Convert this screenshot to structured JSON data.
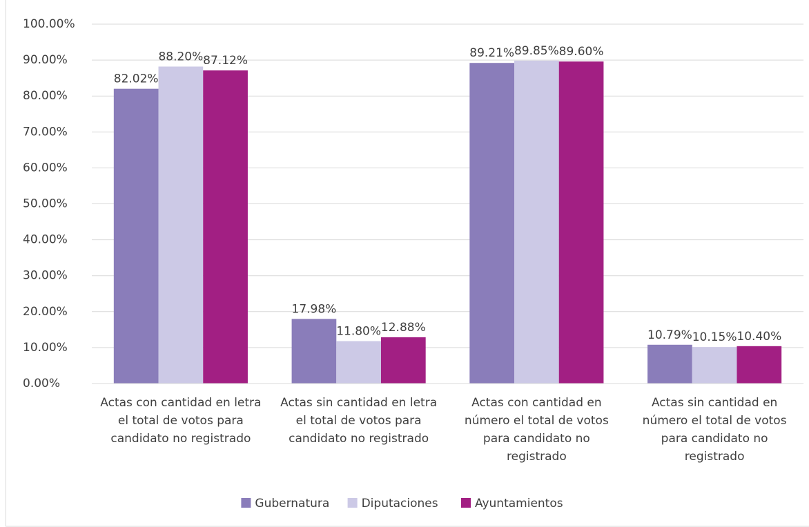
{
  "chart_data": {
    "type": "bar",
    "categories": [
      "Actas con cantidad en letra el total de votos para candidato no registrado",
      "Actas sin cantidad en letra el total de votos para candidato no registrado",
      "Actas con cantidad en número el total de votos para candidato no registrado",
      "Actas sin cantidad en número el total de votos para candidato no registrado"
    ],
    "series": [
      {
        "name": "Gubernatura",
        "color": "#8a7dba",
        "values": [
          82.02,
          17.98,
          89.21,
          10.79
        ],
        "value_labels": [
          "82.02%",
          "17.98%",
          "89.21%",
          "10.79%"
        ]
      },
      {
        "name": "Diputaciones",
        "color": "#ccc9e6",
        "values": [
          88.2,
          11.8,
          89.85,
          10.15
        ],
        "value_labels": [
          "88.20%",
          "11.80%",
          "89.85%",
          "10.15%"
        ]
      },
      {
        "name": "Ayuntamientos",
        "color": "#a21f83",
        "values": [
          87.12,
          12.88,
          89.6,
          10.4
        ],
        "value_labels": [
          "87.12%",
          "12.88%",
          "89.60%",
          "10.40%"
        ]
      }
    ],
    "ylim": [
      0,
      100
    ],
    "yticks": [
      {
        "value": 0,
        "label": "0.00%"
      },
      {
        "value": 10,
        "label": "10.00%"
      },
      {
        "value": 20,
        "label": "20.00%"
      },
      {
        "value": 30,
        "label": "30.00%"
      },
      {
        "value": 40,
        "label": "40.00%"
      },
      {
        "value": 50,
        "label": "50.00%"
      },
      {
        "value": 60,
        "label": "60.00%"
      },
      {
        "value": 70,
        "label": "70.00%"
      },
      {
        "value": 80,
        "label": "80.00%"
      },
      {
        "value": 90,
        "label": "90.00%"
      },
      {
        "value": 100,
        "label": "100.00%"
      }
    ],
    "grid": true,
    "legend": "bottom"
  }
}
